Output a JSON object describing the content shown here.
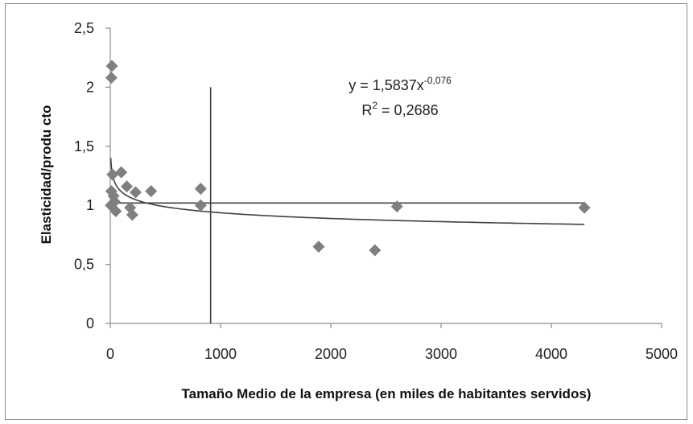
{
  "chart_data": {
    "type": "scatter",
    "xlabel": "Tamaño Medio de la empresa (en miles de habitantes servidos)",
    "ylabel": "Elasticidad/produ cto",
    "xlim": [
      0,
      5000
    ],
    "ylim": [
      0,
      2.5
    ],
    "x_ticks": [
      "0",
      "1000",
      "2000",
      "3000",
      "4000",
      "5000"
    ],
    "y_ticks": [
      "0",
      "0,5",
      "1",
      "1,5",
      "2",
      "2,5"
    ],
    "grid": false,
    "points": [
      {
        "x": 15,
        "y": 2.18
      },
      {
        "x": 10,
        "y": 2.08
      },
      {
        "x": 20,
        "y": 1.26
      },
      {
        "x": 100,
        "y": 1.28
      },
      {
        "x": 10,
        "y": 1.12
      },
      {
        "x": 30,
        "y": 1.08
      },
      {
        "x": 150,
        "y": 1.16
      },
      {
        "x": 230,
        "y": 1.11
      },
      {
        "x": 370,
        "y": 1.12
      },
      {
        "x": 5,
        "y": 1.0
      },
      {
        "x": 40,
        "y": 1.03
      },
      {
        "x": 50,
        "y": 0.95
      },
      {
        "x": 180,
        "y": 0.98
      },
      {
        "x": 200,
        "y": 0.92
      },
      {
        "x": 820,
        "y": 1.14
      },
      {
        "x": 820,
        "y": 1.0
      },
      {
        "x": 1890,
        "y": 0.65
      },
      {
        "x": 2400,
        "y": 0.62
      },
      {
        "x": 2600,
        "y": 0.99
      },
      {
        "x": 4300,
        "y": 0.98
      }
    ],
    "trendline": {
      "type": "power",
      "coefficient": 1.5837,
      "exponent": -0.076,
      "x_range": [
        5,
        4300
      ],
      "equation_prefix": "y = 1,5837x",
      "equation_exponent": "-0,076",
      "r2_prefix": "R",
      "r2_sup": "2",
      "r2_value": " = 0,2686"
    },
    "reference_lines": {
      "vertical_x": 910,
      "horizontal_y": 1.02,
      "horizontal_x_range": [
        0,
        4300
      ]
    },
    "colors": {
      "marker": "#7f7f7f",
      "trendline": "#404040",
      "reference": "#404040",
      "axis": "#8c8c8c"
    }
  }
}
